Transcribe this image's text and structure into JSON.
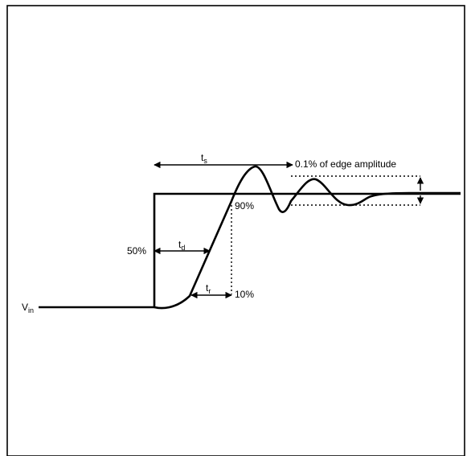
{
  "labels": {
    "vin_main": "V",
    "vin_sub": "in",
    "ts_main": "t",
    "ts_sub": "s",
    "td_main": "t",
    "td_sub": "d",
    "tr_main": "t",
    "tr_sub": "r",
    "pct_50": "50%",
    "pct_90": "90%",
    "pct_10": "10%",
    "edge_note": "0.1% of edge amplitude"
  },
  "colors": {
    "stroke": "#000000",
    "background": "#ffffff"
  }
}
